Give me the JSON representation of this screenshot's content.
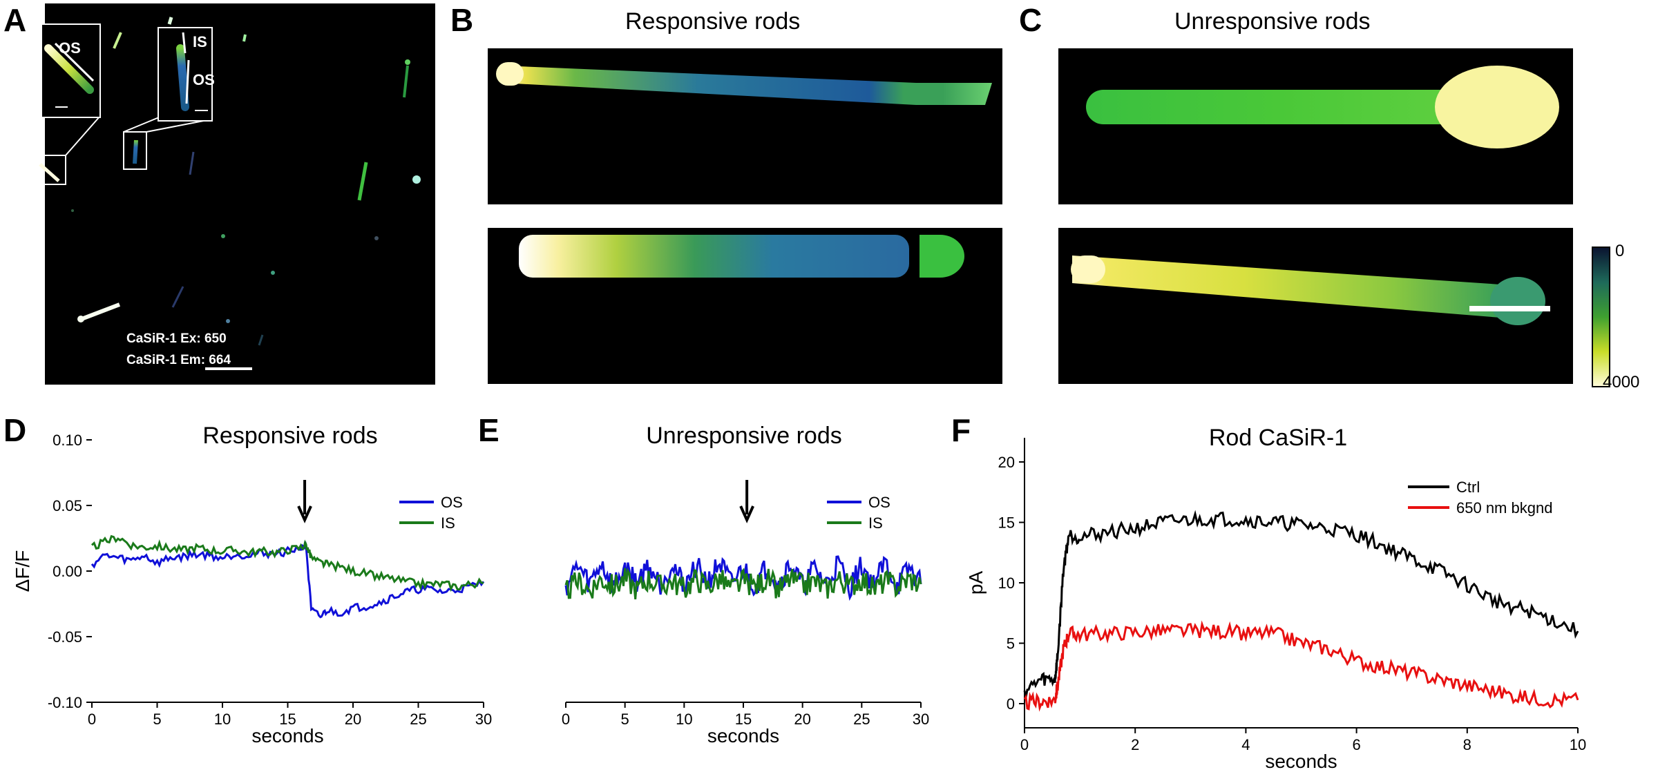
{
  "panels": {
    "A": {
      "label": "A",
      "inset1_label": "OS",
      "inset2_label_is": "IS",
      "inset2_label_os": "OS",
      "excitation": "CaSiR-1 Ex: 650",
      "emission": "CaSiR-1 Em: 664"
    },
    "B": {
      "label": "B",
      "title": "Responsive rods"
    },
    "C": {
      "label": "C",
      "title": "Unresponsive rods"
    },
    "D": {
      "label": "D",
      "title": "Responsive rods"
    },
    "E": {
      "label": "E",
      "title": "Unresponsive rods"
    },
    "F": {
      "label": "F",
      "title": "Rod CaSiR-1"
    }
  },
  "colorbar": {
    "min_label": "0",
    "max_label": "4000",
    "colors": [
      "#0a1430",
      "#1e6a5a",
      "#3fa030",
      "#c8dc28",
      "#fffcd8"
    ]
  },
  "colors": {
    "os": "#1010d8",
    "is": "#1a7a1a",
    "ctrl": "#000000",
    "bkgnd": "#e81010"
  },
  "chart_data": [
    {
      "id": "D",
      "type": "line",
      "title": "Responsive rods",
      "xlabel": "seconds",
      "ylabel": "ΔF/F",
      "xlim": [
        0,
        30
      ],
      "ylim": [
        -0.1,
        0.1
      ],
      "xticks": [
        "0",
        "5",
        "10",
        "15",
        "20",
        "25",
        "30"
      ],
      "yticks": [
        "0.10",
        "0.05",
        "0.00",
        "-0.05",
        "-0.10"
      ],
      "ytick_values": [
        0.1,
        0.05,
        0,
        -0.05,
        -0.1
      ],
      "arrow_at": 16.3,
      "legend": "right",
      "series": [
        {
          "name": "OS",
          "color": "#1010d8",
          "x": [
            0,
            1,
            2,
            3,
            4,
            5,
            6,
            7,
            8,
            9,
            10,
            11,
            12,
            13,
            14,
            15,
            16,
            16.4,
            16.8,
            17.5,
            18,
            19,
            20,
            21,
            22,
            23,
            24,
            25,
            26,
            27,
            28,
            29,
            30
          ],
          "y": [
            0.005,
            0.012,
            0.01,
            0.008,
            0.012,
            0.006,
            0.01,
            0.011,
            0.013,
            0.012,
            0.01,
            0.013,
            0.012,
            0.014,
            0.013,
            0.015,
            0.018,
            0.02,
            -0.03,
            -0.035,
            -0.03,
            -0.032,
            -0.028,
            -0.027,
            -0.024,
            -0.02,
            -0.016,
            -0.014,
            -0.014,
            -0.016,
            -0.014,
            -0.012,
            -0.008
          ]
        },
        {
          "name": "IS",
          "color": "#1a7a1a",
          "x": [
            0,
            1,
            2,
            3,
            4,
            5,
            6,
            7,
            8,
            9,
            10,
            11,
            12,
            13,
            14,
            15,
            16,
            16.4,
            16.8,
            17.5,
            18,
            19,
            20,
            21,
            22,
            23,
            24,
            25,
            26,
            27,
            28,
            29,
            30
          ],
          "y": [
            0.018,
            0.022,
            0.026,
            0.02,
            0.018,
            0.019,
            0.017,
            0.016,
            0.018,
            0.016,
            0.015,
            0.016,
            0.014,
            0.015,
            0.014,
            0.016,
            0.018,
            0.02,
            0.01,
            0.006,
            0.005,
            0.003,
            0.0,
            -0.002,
            -0.004,
            -0.006,
            -0.008,
            -0.01,
            -0.01,
            -0.01,
            -0.012,
            -0.01,
            -0.009
          ]
        }
      ]
    },
    {
      "id": "E",
      "type": "line",
      "title": "Unresponsive rods",
      "xlabel": "seconds",
      "ylabel": "",
      "xlim": [
        0,
        30
      ],
      "ylim": [
        -0.1,
        0.1
      ],
      "xticks": [
        "0",
        "5",
        "10",
        "15",
        "20",
        "25",
        "30"
      ],
      "arrow_at": 15.3,
      "legend": "right",
      "series": [
        {
          "name": "OS",
          "color": "#1010d8",
          "x": [
            0,
            1,
            2,
            3,
            4,
            5,
            6,
            7,
            8,
            9,
            10,
            11,
            12,
            13,
            14,
            15,
            16,
            17,
            18,
            19,
            20,
            21,
            22,
            23,
            24,
            25,
            26,
            27,
            28,
            29,
            30
          ],
          "y": [
            -0.012,
            0.004,
            -0.01,
            0.006,
            -0.012,
            0.002,
            -0.008,
            0.004,
            -0.01,
            0.006,
            -0.012,
            0.004,
            -0.008,
            0.006,
            -0.01,
            0.002,
            -0.012,
            0.004,
            -0.01,
            0.006,
            -0.012,
            0.002,
            -0.01,
            0.006,
            -0.012,
            0.004,
            -0.01,
            0.006,
            -0.012,
            0.002,
            -0.01
          ]
        },
        {
          "name": "IS",
          "color": "#1a7a1a",
          "x": [
            0,
            1,
            2,
            3,
            4,
            5,
            6,
            7,
            8,
            9,
            10,
            11,
            12,
            13,
            14,
            15,
            16,
            17,
            18,
            19,
            20,
            21,
            22,
            23,
            24,
            25,
            26,
            27,
            28,
            29,
            30
          ],
          "y": [
            -0.016,
            -0.008,
            -0.014,
            -0.006,
            -0.012,
            -0.006,
            -0.014,
            -0.006,
            -0.012,
            -0.008,
            -0.014,
            -0.006,
            -0.012,
            -0.006,
            -0.014,
            -0.008,
            -0.012,
            -0.006,
            -0.014,
            -0.006,
            -0.012,
            -0.008,
            -0.014,
            -0.006,
            -0.012,
            -0.006,
            -0.014,
            -0.008,
            -0.012,
            -0.006,
            -0.01
          ]
        }
      ]
    },
    {
      "id": "F",
      "type": "line",
      "title": "Rod CaSiR-1",
      "xlabel": "seconds",
      "ylabel": "pA",
      "xlim": [
        0,
        10
      ],
      "ylim": [
        -2,
        22
      ],
      "xticks": [
        "0",
        "2",
        "4",
        "6",
        "8",
        "10"
      ],
      "yticks": [
        "20",
        "15",
        "10",
        "5",
        "0"
      ],
      "ytick_values": [
        20,
        15,
        10,
        5,
        0
      ],
      "legend": "upper right",
      "series": [
        {
          "name": "Ctrl",
          "color": "#000000",
          "x": [
            0,
            0.3,
            0.55,
            0.6,
            0.7,
            0.8,
            1,
            1.5,
            2,
            2.5,
            3,
            3.5,
            4,
            4.5,
            5,
            5.5,
            6,
            6.5,
            7,
            7.5,
            8,
            8.5,
            9,
            9.5,
            10
          ],
          "y": [
            1,
            2,
            2,
            4,
            11,
            14,
            13.8,
            14.2,
            14.5,
            15,
            15.2,
            15.3,
            15.2,
            15,
            14.8,
            14.5,
            14,
            13,
            12,
            11,
            9.8,
            8.5,
            7.8,
            7,
            6
          ]
        },
        {
          "name": "650 nm bkgnd",
          "color": "#e81010",
          "x": [
            0,
            0.3,
            0.55,
            0.6,
            0.7,
            0.8,
            1,
            1.5,
            2,
            2.5,
            3,
            3.5,
            4,
            4.5,
            5,
            5.5,
            6,
            6.5,
            7,
            7.5,
            8,
            8.5,
            9,
            9.5,
            10
          ],
          "y": [
            0,
            0.2,
            0.3,
            1.5,
            4.5,
            5.8,
            5.7,
            5.8,
            5.9,
            6,
            6,
            6,
            5.8,
            5.8,
            5,
            4.5,
            3.5,
            3,
            2.5,
            2,
            1.5,
            1,
            0.5,
            0.3,
            0.3
          ]
        }
      ]
    }
  ]
}
